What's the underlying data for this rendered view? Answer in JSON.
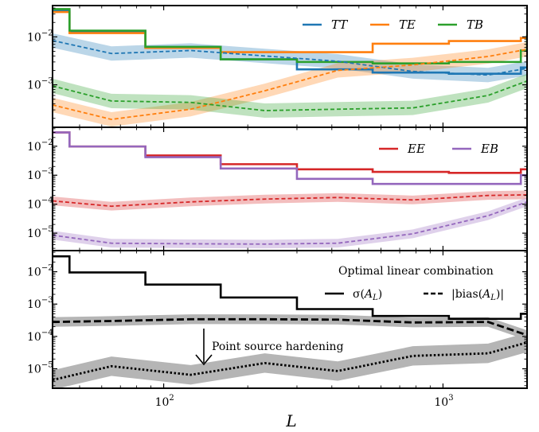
{
  "chart_data": [
    {
      "type": "line",
      "xscale": "log",
      "yscale": "log",
      "xlim": [
        40,
        2000
      ],
      "ylim": [
        0.00013,
        0.045
      ],
      "yticks": [
        {
          "value": 0.01,
          "base": "10",
          "exp": "−2"
        },
        {
          "value": 0.001,
          "base": "10",
          "exp": "−3"
        }
      ],
      "series": [
        {
          "name": "TT",
          "color": "#1f77b4",
          "style": "solid-step",
          "x": [
            40,
            46,
            86,
            160,
            300,
            560,
            1050,
            1900,
            2000
          ],
          "y": [
            0.036,
            0.013,
            0.0062,
            0.0034,
            0.0021,
            0.0018,
            0.0017,
            0.0023,
            0.0023
          ]
        },
        {
          "name": "TE",
          "color": "#ff7f0e",
          "style": "solid-step",
          "x": [
            40,
            46,
            86,
            160,
            300,
            560,
            1050,
            1900,
            2000
          ],
          "y": [
            0.033,
            0.012,
            0.0059,
            0.0048,
            0.0048,
            0.0072,
            0.0082,
            0.0095,
            0.0095
          ]
        },
        {
          "name": "TB",
          "color": "#2ca02c",
          "style": "solid-step",
          "x": [
            40,
            46,
            86,
            160,
            300,
            560,
            1050,
            1900,
            2000
          ],
          "y": [
            0.038,
            0.0135,
            0.0062,
            0.0034,
            0.003,
            0.0028,
            0.003,
            0.0052,
            0.011
          ]
        },
        {
          "name": "",
          "color": "#1f77b4",
          "style": "dashed-band",
          "x": [
            40,
            65,
            125,
            230,
            420,
            780,
            1450,
            2000
          ],
          "y": [
            0.0084,
            0.0045,
            0.0052,
            0.004,
            0.0031,
            0.0019,
            0.0016,
            0.0022
          ]
        },
        {
          "name": "",
          "color": "#ff7f0e",
          "style": "dashed-band",
          "x": [
            40,
            65,
            125,
            230,
            420,
            780,
            1450,
            2000
          ],
          "y": [
            0.00038,
            0.00019,
            0.00031,
            0.00075,
            0.002,
            0.0026,
            0.0039,
            0.0055
          ]
        },
        {
          "name": "",
          "color": "#2ca02c",
          "style": "dashed-band",
          "x": [
            40,
            65,
            125,
            230,
            420,
            780,
            1450,
            2000
          ],
          "y": [
            0.00095,
            0.00046,
            0.00043,
            0.00029,
            0.00031,
            0.00033,
            0.0006,
            0.0012
          ]
        }
      ],
      "legend": {
        "placement": "top-right",
        "entries": [
          {
            "label": "TT",
            "color": "#1f77b4"
          },
          {
            "label": "TE",
            "color": "#ff7f0e"
          },
          {
            "label": "TB",
            "color": "#2ca02c"
          }
        ]
      }
    },
    {
      "type": "line",
      "xscale": "log",
      "yscale": "log",
      "xlim": [
        40,
        2000
      ],
      "ylim": [
        2.5e-06,
        0.045
      ],
      "yticks": [
        {
          "value": 0.01,
          "base": "10",
          "exp": "−2"
        },
        {
          "value": 0.001,
          "base": "10",
          "exp": "−3"
        },
        {
          "value": 0.0001,
          "base": "10",
          "exp": "−4"
        },
        {
          "value": 1e-05,
          "base": "10",
          "exp": "−5"
        }
      ],
      "series": [
        {
          "name": "EE",
          "color": "#d62728",
          "style": "solid-step",
          "x": [
            40,
            46,
            86,
            160,
            300,
            560,
            1050,
            1900,
            2000
          ],
          "y": [
            0.03,
            0.0098,
            0.0048,
            0.0024,
            0.0016,
            0.0013,
            0.0012,
            0.0016,
            0.0016
          ]
        },
        {
          "name": "EB",
          "color": "#9467bd",
          "style": "solid-step",
          "x": [
            40,
            46,
            86,
            160,
            300,
            560,
            1050,
            1900,
            2000
          ],
          "y": [
            0.03,
            0.0098,
            0.0042,
            0.0017,
            0.00075,
            0.0005,
            0.0005,
            0.001,
            0.001
          ]
        },
        {
          "name": "",
          "color": "#d62728",
          "style": "dashed-band",
          "x": [
            40,
            65,
            125,
            230,
            420,
            780,
            1450,
            2000
          ],
          "y": [
            0.00013,
            8.5e-05,
            0.00012,
            0.00015,
            0.00017,
            0.00014,
            0.0002,
            0.00021
          ]
        },
        {
          "name": "",
          "color": "#9467bd",
          "style": "dashed-band",
          "x": [
            40,
            65,
            125,
            230,
            420,
            780,
            1450,
            2000
          ],
          "y": [
            8.5e-06,
            4.5e-06,
            4.3e-06,
            4.2e-06,
            4.5e-06,
            9.5e-06,
            4e-05,
            0.00012
          ]
        }
      ],
      "legend": {
        "placement": "top-right",
        "entries": [
          {
            "label": "EE",
            "color": "#d62728"
          },
          {
            "label": "EB",
            "color": "#9467bd"
          }
        ]
      }
    },
    {
      "type": "line",
      "xscale": "log",
      "yscale": "log",
      "xlim": [
        40,
        2000
      ],
      "ylim": [
        2.5e-06,
        0.045
      ],
      "xlabel": "L",
      "xticks": [
        {
          "value": 100,
          "base": "10",
          "exp": "2"
        },
        {
          "value": 1000,
          "base": "10",
          "exp": "3"
        }
      ],
      "yticks": [
        {
          "value": 0.01,
          "base": "10",
          "exp": "−2"
        },
        {
          "value": 0.001,
          "base": "10",
          "exp": "−3"
        },
        {
          "value": 0.0001,
          "base": "10",
          "exp": "−4"
        },
        {
          "value": 1e-05,
          "base": "10",
          "exp": "−5"
        }
      ],
      "series": [
        {
          "name": "",
          "color": "#000000",
          "style": "solid-step",
          "x": [
            40,
            46,
            86,
            160,
            300,
            560,
            1050,
            1900,
            2000
          ],
          "y": [
            0.03,
            0.0095,
            0.004,
            0.0016,
            0.0007,
            0.00043,
            0.00035,
            0.0005,
            0.0005
          ]
        },
        {
          "name": "",
          "color": "#000000",
          "style": "dashed-band",
          "x": [
            40,
            65,
            125,
            230,
            420,
            780,
            1450,
            2000
          ],
          "y": [
            0.00028,
            0.0003,
            0.00034,
            0.00034,
            0.00033,
            0.00027,
            0.00028,
            0.00011
          ]
        },
        {
          "name": "",
          "color": "#000000",
          "style": "dotted-band",
          "x": [
            40,
            65,
            125,
            230,
            420,
            780,
            1450,
            2000
          ],
          "y": [
            4.5e-06,
            1.2e-05,
            6.5e-06,
            1.5e-05,
            8.5e-06,
            2.5e-05,
            3e-05,
            6.5e-05
          ]
        }
      ],
      "legend": {
        "placement": "top-right",
        "title": "Optimal linear combination",
        "entries": [
          {
            "label": "σ(A_L)",
            "style": "solid"
          },
          {
            "label": "|bias(A_L)|",
            "style": "dashed"
          }
        ]
      },
      "annotation": {
        "text": "Point source hardening"
      }
    }
  ]
}
